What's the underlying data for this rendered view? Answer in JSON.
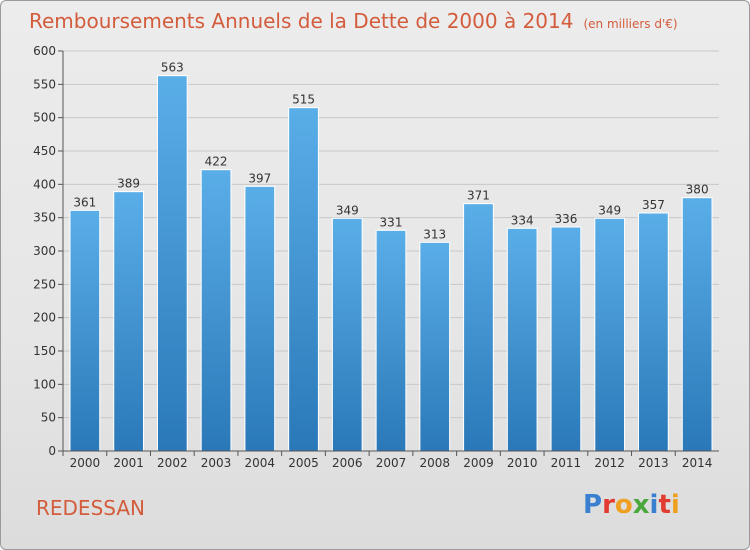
{
  "page": {
    "city": "REDESSAN"
  },
  "logo": {
    "letters": [
      "P",
      "r",
      "o",
      "x",
      "i",
      "t",
      "i"
    ]
  },
  "colors": {
    "title": "#d35c3c",
    "bar_top": "#5aaee8",
    "bar_bottom": "#2a78b8",
    "grid": "#c8c8c8"
  },
  "chart_data": {
    "type": "bar",
    "title": "Remboursements Annuels de la Dette de 2000 à 2014",
    "unit": "(en milliers d'€)",
    "categories": [
      "2000",
      "2001",
      "2002",
      "2003",
      "2004",
      "2005",
      "2006",
      "2007",
      "2008",
      "2009",
      "2010",
      "2011",
      "2012",
      "2013",
      "2014"
    ],
    "values": [
      361,
      389,
      563,
      422,
      397,
      515,
      349,
      331,
      313,
      371,
      334,
      336,
      349,
      357,
      380
    ],
    "value_labels": [
      "361",
      "389",
      "563",
      "422",
      "397",
      "515",
      "349",
      "331",
      "313",
      "371",
      "334",
      "336",
      "349",
      "357",
      "380"
    ],
    "ylim": [
      0,
      600
    ],
    "yticks": [
      0,
      50,
      100,
      150,
      200,
      250,
      300,
      350,
      400,
      450,
      500,
      550,
      600
    ],
    "ytick_labels": [
      "0",
      "50",
      "100",
      "150",
      "200",
      "250",
      "300",
      "350",
      "400",
      "450",
      "500",
      "550",
      "600"
    ],
    "xlabel": "",
    "ylabel": "",
    "grid": true
  }
}
